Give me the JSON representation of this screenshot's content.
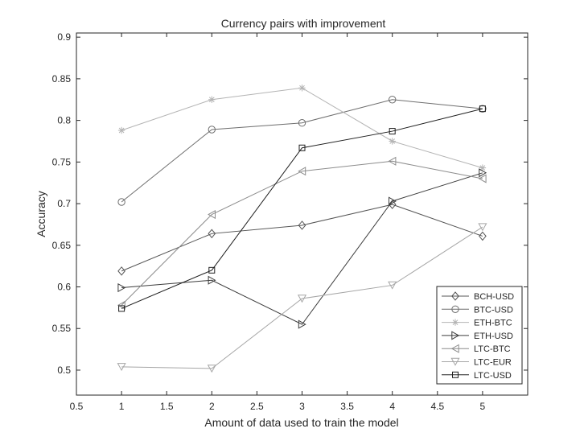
{
  "chart_data": {
    "type": "line",
    "title": "Currency pairs with improvement",
    "xlabel": "Amount of data used to train the model",
    "ylabel": "Accuracy",
    "xlim": [
      0.5,
      5.5
    ],
    "ylim": [
      0.47,
      0.905
    ],
    "xticks": [
      0.5,
      1,
      1.5,
      2,
      2.5,
      3,
      3.5,
      4,
      4.5,
      5
    ],
    "xtick_labels": [
      "0.5",
      "1",
      "1.5",
      "2",
      "2.5",
      "3",
      "3.5",
      "4",
      "4.5",
      "5"
    ],
    "yticks": [
      0.5,
      0.55,
      0.6,
      0.65,
      0.7,
      0.75,
      0.8,
      0.85,
      0.9
    ],
    "ytick_labels": [
      "0.5",
      "0.55",
      "0.6",
      "0.65",
      "0.7",
      "0.75",
      "0.8",
      "0.85",
      "0.9"
    ],
    "grid": false,
    "legend_position": "bottom-right",
    "x": [
      1,
      2,
      3,
      4,
      5
    ],
    "series": [
      {
        "name": "BCH-USD",
        "marker": "diamond",
        "color": "#555555",
        "values": [
          0.619,
          0.664,
          0.674,
          0.699,
          0.661
        ]
      },
      {
        "name": "BTC-USD",
        "marker": "circle",
        "color": "#6e6e6e",
        "values": [
          0.702,
          0.789,
          0.797,
          0.825,
          0.814
        ]
      },
      {
        "name": "ETH-BTC",
        "marker": "asterisk",
        "color": "#b4b4b4",
        "values": [
          0.788,
          0.825,
          0.839,
          0.775,
          0.743
        ]
      },
      {
        "name": "ETH-USD",
        "marker": "triangle-right",
        "color": "#3c3c3c",
        "values": [
          0.599,
          0.608,
          0.555,
          0.703,
          0.737
        ]
      },
      {
        "name": "LTC-BTC",
        "marker": "triangle-left",
        "color": "#8c8c8c",
        "values": [
          0.578,
          0.687,
          0.739,
          0.751,
          0.73
        ]
      },
      {
        "name": "LTC-EUR",
        "marker": "triangle-down",
        "color": "#a6a6a6",
        "values": [
          0.504,
          0.502,
          0.586,
          0.602,
          0.672
        ]
      },
      {
        "name": "LTC-USD",
        "marker": "square",
        "color": "#1e1e1e",
        "values": [
          0.574,
          0.62,
          0.767,
          0.787,
          0.814
        ]
      }
    ]
  }
}
